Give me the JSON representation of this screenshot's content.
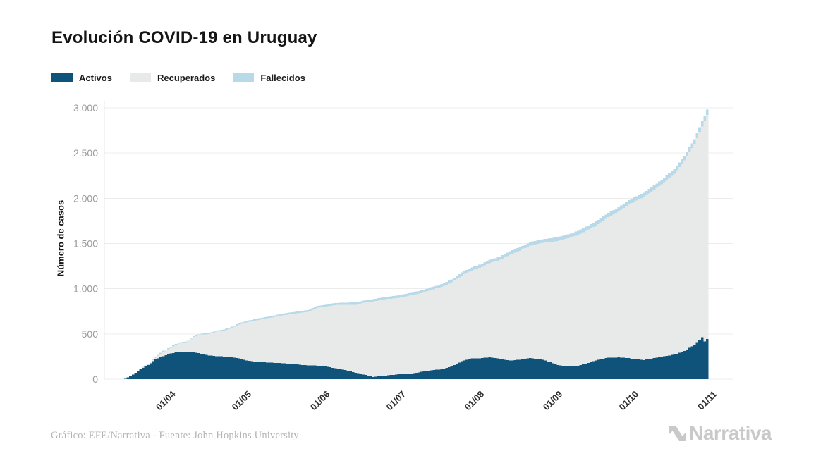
{
  "title": "Evolución COVID-19 en Uruguay",
  "footer": {
    "credit": "Gráfico: EFE/Narrativa - Fuente: John Hopkins University",
    "brand": "Narrativa"
  },
  "colors": {
    "activos": "#0f537b",
    "recuperados": "#e8eaea",
    "fallecidos": "#b7d9e8",
    "grid": "#ececec",
    "axis_line": "#e9e9e9",
    "y_tick_text": "#9b9b9b",
    "x_tick_text": "#2e2e2e"
  },
  "chart_data": {
    "type": "area",
    "stacked": true,
    "title": "Evolución COVID-19 en Uruguay",
    "xlabel": "",
    "ylabel": "Número de casos",
    "ylim": [
      0,
      3000
    ],
    "grid": "horizontal",
    "legend_position": "top-left",
    "y_ticks": [
      {
        "label": "0",
        "value": 0
      },
      {
        "label": "500",
        "value": 500
      },
      {
        "label": "1.000",
        "value": 1000
      },
      {
        "label": "1.500",
        "value": 1500
      },
      {
        "label": "2.000",
        "value": 2000
      },
      {
        "label": "2.500",
        "value": 2500
      },
      {
        "label": "3.000",
        "value": 3000
      }
    ],
    "x_ticks": [
      {
        "label": "01/04",
        "day": 18
      },
      {
        "label": "01/05",
        "day": 48
      },
      {
        "label": "01/06",
        "day": 79
      },
      {
        "label": "01/07",
        "day": 109
      },
      {
        "label": "01/08",
        "day": 140
      },
      {
        "label": "01/09",
        "day": 171
      },
      {
        "label": "01/10",
        "day": 201
      },
      {
        "label": "01/11",
        "day": 232
      }
    ],
    "legend": [
      {
        "name": "Activos",
        "key": "activos",
        "color": "#0f537b"
      },
      {
        "name": "Recuperados",
        "key": "recuperados",
        "color": "#e8eaea"
      },
      {
        "name": "Fallecidos",
        "key": "fallecidos",
        "color": "#b7d9e8"
      }
    ],
    "series_order_bottom_to_top": [
      "activos",
      "recuperados",
      "fallecidos"
    ],
    "points": {
      "days": [
        0,
        3,
        6,
        9,
        12,
        15,
        18,
        21,
        24,
        27,
        30,
        33,
        36,
        39,
        42,
        45,
        48,
        52,
        56,
        60,
        64,
        68,
        72,
        76,
        79,
        83,
        87,
        91,
        95,
        98,
        102,
        106,
        109,
        113,
        117,
        121,
        125,
        129,
        133,
        137,
        140,
        144,
        148,
        152,
        156,
        160,
        164,
        168,
        171,
        175,
        179,
        183,
        187,
        191,
        195,
        199,
        201,
        205,
        209,
        213,
        217,
        221,
        225,
        228,
        229,
        230
      ],
      "dates": [
        "14/03",
        "17/03",
        "20/03",
        "23/03",
        "26/03",
        "29/03",
        "01/04",
        "04/04",
        "07/04",
        "10/04",
        "13/04",
        "16/04",
        "19/04",
        "22/04",
        "25/04",
        "28/04",
        "01/05",
        "05/05",
        "09/05",
        "13/05",
        "17/05",
        "21/05",
        "25/05",
        "29/05",
        "01/06",
        "05/06",
        "09/06",
        "13/06",
        "17/06",
        "20/06",
        "24/06",
        "28/06",
        "01/07",
        "05/07",
        "09/07",
        "13/07",
        "17/07",
        "21/07",
        "25/07",
        "29/07",
        "01/08",
        "05/08",
        "09/08",
        "13/08",
        "17/08",
        "21/08",
        "25/08",
        "29/08",
        "01/09",
        "05/09",
        "09/09",
        "13/09",
        "17/09",
        "21/09",
        "25/09",
        "29/09",
        "01/10",
        "05/10",
        "09/10",
        "13/10",
        "17/10",
        "21/10",
        "25/10",
        "28/10",
        "29/10",
        "30/10"
      ],
      "activos": [
        4,
        50,
        110,
        155,
        220,
        255,
        284,
        300,
        298,
        300,
        280,
        262,
        255,
        250,
        245,
        228,
        205,
        192,
        183,
        180,
        172,
        162,
        152,
        150,
        140,
        122,
        100,
        72,
        45,
        25,
        38,
        48,
        55,
        62,
        80,
        98,
        110,
        140,
        200,
        228,
        230,
        242,
        226,
        205,
        216,
        232,
        222,
        188,
        155,
        142,
        148,
        180,
        215,
        238,
        240,
        232,
        222,
        212,
        232,
        252,
        272,
        310,
        380,
        465,
        415,
        445
      ],
      "recuperados": [
        0,
        0,
        0,
        5,
        18,
        49,
        62,
        95,
        110,
        166,
        214,
        235,
        270,
        288,
        321,
        376,
        423,
        458,
        490,
        513,
        542,
        567,
        591,
        640,
        661,
        697,
        724,
        752,
        807,
        834,
        843,
        845,
        850,
        866,
        872,
        888,
        911,
        930,
        947,
        973,
        1000,
        1041,
        1094,
        1170,
        1204,
        1243,
        1280,
        1330,
        1372,
        1415,
        1448,
        1475,
        1500,
        1554,
        1615,
        1700,
        1740,
        1800,
        1862,
        1924,
        2000,
        2110,
        2220,
        2330,
        2443,
        2476
      ],
      "fallecidos": [
        0,
        0,
        0,
        1,
        1,
        1,
        4,
        5,
        7,
        7,
        8,
        9,
        10,
        12,
        14,
        16,
        17,
        17,
        18,
        19,
        20,
        20,
        21,
        22,
        22,
        23,
        23,
        24,
        24,
        24,
        25,
        26,
        27,
        28,
        29,
        30,
        31,
        32,
        33,
        34,
        35,
        36,
        37,
        38,
        39,
        40,
        41,
        42,
        43,
        44,
        45,
        45,
        46,
        46,
        47,
        47,
        48,
        49,
        49,
        50,
        51,
        52,
        53,
        57,
        58,
        60
      ]
    }
  }
}
